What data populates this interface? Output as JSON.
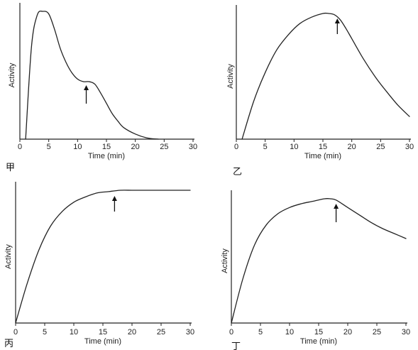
{
  "figure": {
    "panels": [
      "甲",
      "乙",
      "丙",
      "丁"
    ]
  },
  "chart_data": [
    {
      "type": "line",
      "panel_label": "甲",
      "xlabel": "Time (min)",
      "ylabel": "Activity",
      "xlim": [
        0,
        30
      ],
      "xticks": [
        0,
        5,
        10,
        15,
        20,
        25,
        30
      ],
      "ylim": [
        0,
        1
      ],
      "grid": false,
      "arrow_at_x": 11.5,
      "series": [
        {
          "x": [
            1,
            2,
            3,
            4,
            5,
            6,
            7,
            8,
            9,
            10,
            11,
            12,
            13,
            14,
            15,
            16,
            17,
            18,
            20,
            22,
            24
          ],
          "y": [
            0,
            0.72,
            0.97,
            1.0,
            0.98,
            0.86,
            0.71,
            0.6,
            0.52,
            0.47,
            0.45,
            0.45,
            0.43,
            0.36,
            0.28,
            0.2,
            0.14,
            0.09,
            0.04,
            0.01,
            0
          ]
        }
      ]
    },
    {
      "type": "line",
      "panel_label": "乙",
      "xlabel": "Time (min)",
      "ylabel": "Activity",
      "xlim": [
        0,
        30
      ],
      "xticks": [
        0,
        5,
        10,
        15,
        20,
        25,
        30
      ],
      "ylim": [
        0,
        1
      ],
      "grid": false,
      "arrow_at_x": 17.5,
      "series": [
        {
          "x": [
            1,
            3,
            5,
            7,
            9,
            11,
            13,
            15,
            16,
            17,
            18,
            19,
            20,
            22,
            24,
            26,
            28,
            30
          ],
          "y": [
            0,
            0.3,
            0.53,
            0.71,
            0.83,
            0.92,
            0.97,
            1.0,
            1.0,
            0.99,
            0.95,
            0.88,
            0.8,
            0.64,
            0.5,
            0.38,
            0.27,
            0.18
          ]
        }
      ]
    },
    {
      "type": "line",
      "panel_label": "丙",
      "xlabel": "Time (min)",
      "ylabel": "Activity",
      "xlim": [
        0,
        30
      ],
      "xticks": [
        0,
        5,
        10,
        15,
        20,
        25,
        30
      ],
      "ylim": [
        0,
        1
      ],
      "grid": false,
      "arrow_at_x": 17,
      "series": [
        {
          "x": [
            0,
            2,
            4,
            6,
            8,
            10,
            12,
            14,
            16,
            18,
            20,
            22,
            25,
            30
          ],
          "y": [
            0,
            0.3,
            0.55,
            0.73,
            0.84,
            0.91,
            0.95,
            0.98,
            0.99,
            1.0,
            1.0,
            1.0,
            1.0,
            1.0
          ]
        }
      ]
    },
    {
      "type": "line",
      "panel_label": "丁",
      "xlabel": "Time (min)",
      "ylabel": "Activity",
      "xlim": [
        0,
        30
      ],
      "xticks": [
        0,
        5,
        10,
        15,
        20,
        25,
        30
      ],
      "ylim": [
        0,
        1
      ],
      "grid": false,
      "arrow_at_x": 18,
      "series": [
        {
          "x": [
            0,
            2,
            4,
            6,
            8,
            10,
            12,
            14,
            16,
            17,
            18,
            20,
            22,
            24,
            26,
            28,
            30
          ],
          "y": [
            0,
            0.36,
            0.63,
            0.79,
            0.88,
            0.93,
            0.96,
            0.98,
            1.0,
            1.0,
            0.99,
            0.93,
            0.87,
            0.81,
            0.76,
            0.72,
            0.68
          ]
        }
      ]
    }
  ]
}
